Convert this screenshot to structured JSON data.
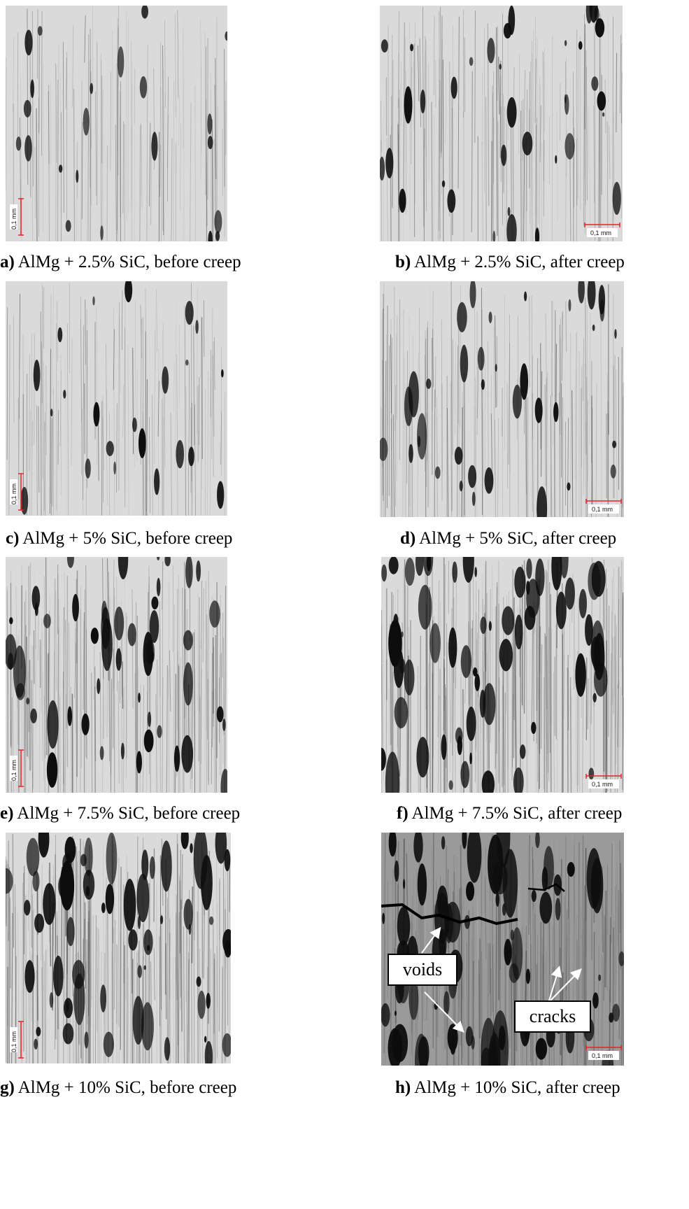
{
  "panels": [
    {
      "letter": "a)",
      "text": " AlMg + 2.5% SiC, before creep",
      "scale_label": "0,1 mm"
    },
    {
      "letter": "b)",
      "text": " AlMg + 2.5% SiC, after creep",
      "scale_label": "0,1 mm"
    },
    {
      "letter": "c)",
      "text": " AlMg + 5% SiC, before creep",
      "scale_label": "0,1 mm"
    },
    {
      "letter": "d)",
      "text": " AlMg + 5% SiC, after creep",
      "scale_label": "0,1 mm"
    },
    {
      "letter": "e)",
      "text": " AlMg + 7.5% SiC, before creep",
      "scale_label": "0,1 mm"
    },
    {
      "letter": "f)",
      "text": " AlMg + 7.5% SiC, after creep",
      "scale_label": "0,1 mm"
    },
    {
      "letter": "g)",
      "text": " AlMg + 10% SiC, before creep",
      "scale_label": "0,1 mm"
    },
    {
      "letter": "h)",
      "text": " AlMg + 10% SiC, after creep",
      "scale_label": "0,1 mm"
    }
  ],
  "annotations": {
    "voids": "voids",
    "cracks": "cracks"
  },
  "colors": {
    "scale_bar": "#e0262b",
    "pore": "#0d0d0d",
    "matrix": "#d9d9d9"
  }
}
